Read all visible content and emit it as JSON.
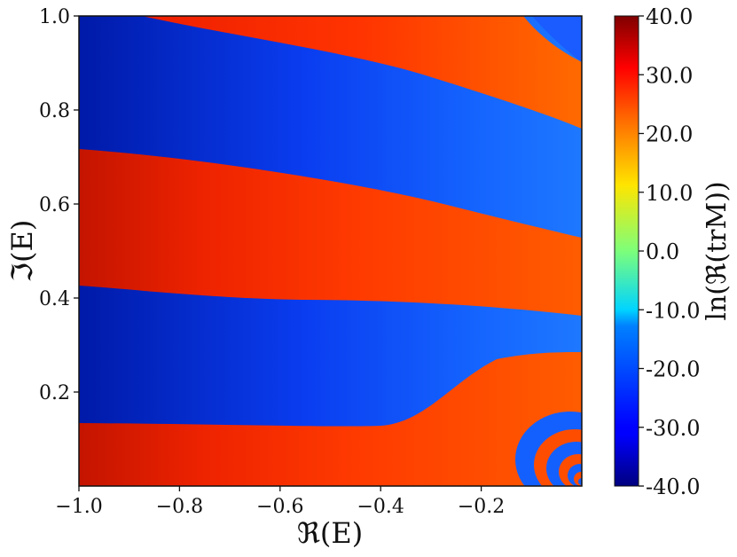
{
  "chart_data": {
    "type": "heatmap",
    "xlabel": "ℜ(E)",
    "ylabel": "ℑ(E)",
    "xlim": [
      -1.0,
      0.0
    ],
    "ylim": [
      0.0,
      1.0
    ],
    "x_ticks": [
      -1.0,
      -0.8,
      -0.6,
      -0.4,
      -0.2
    ],
    "x_tick_labels": [
      "−1.0",
      "−0.8",
      "−0.6",
      "−0.4",
      "−0.2"
    ],
    "y_ticks": [
      0.2,
      0.4,
      0.6,
      0.8,
      1.0
    ],
    "y_tick_labels": [
      "0.2",
      "0.4",
      "0.6",
      "0.8",
      "1.0"
    ],
    "colorbar": {
      "label": "ln(ℜ(trM))",
      "colormap": "jet",
      "range": [
        -40.0,
        40.0
      ],
      "ticks": [
        40.0,
        30.0,
        20.0,
        10.0,
        0.0,
        -10.0,
        -20.0,
        -30.0,
        -40.0
      ],
      "tick_labels": [
        "40.0",
        "30.0",
        "20.0",
        "10.0",
        "0.0",
        "-10.0",
        "-20.0",
        "-30.0",
        "-40.0"
      ]
    },
    "grid": false
  }
}
